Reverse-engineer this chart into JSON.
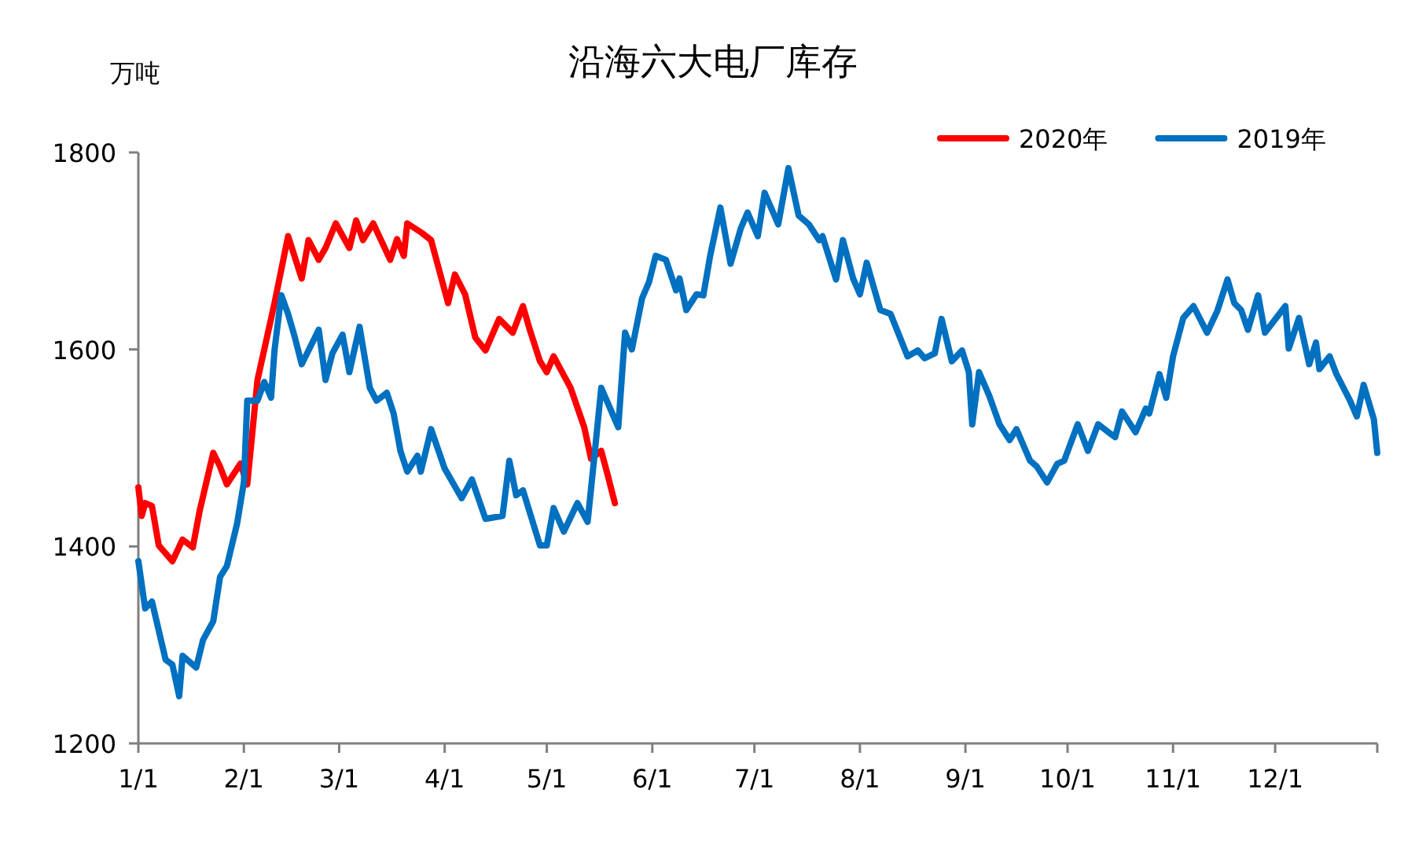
{
  "chart_data": {
    "type": "line",
    "title": "沿海六大电厂库存",
    "ylabel": "万吨",
    "legend": "top right",
    "line_style": "solid",
    "xlim": [
      "--01-01",
      "--12-31"
    ],
    "xticks": [
      {
        "value": "--01-01",
        "label": "1/1"
      },
      {
        "value": "--02-01",
        "label": "2/1"
      },
      {
        "value": "--03-01",
        "label": "3/1"
      },
      {
        "value": "--04-01",
        "label": "4/1"
      },
      {
        "value": "--05-01",
        "label": "5/1"
      },
      {
        "value": "--06-01",
        "label": "6/1"
      },
      {
        "value": "--07-01",
        "label": "7/1"
      },
      {
        "value": "--08-01",
        "label": "8/1"
      },
      {
        "value": "--09-01",
        "label": "9/1"
      },
      {
        "value": "--10-01",
        "label": "10/1"
      },
      {
        "value": "--11-01",
        "label": "11/1"
      },
      {
        "value": "--12-01",
        "label": "12/1"
      },
      {
        "value": "--12-31",
        "label": null
      }
    ],
    "ylim": [
      1200,
      1800
    ],
    "yticks": [
      1200,
      1400,
      1600,
      1800
    ],
    "series": [
      {
        "name": "2020年",
        "color": "#ff0000",
        "x": [
          "--01-01",
          "--01-02",
          "--01-03",
          "--01-05",
          "--01-07",
          "--01-11",
          "--01-14",
          "--01-17",
          "--01-19",
          "--01-23",
          "--01-25",
          "--01-27",
          "--01-31",
          "--02-02",
          "--02-05",
          "--02-07",
          "--02-10",
          "--02-14",
          "--02-18",
          "--02-20",
          "--02-23",
          "--02-25",
          "--02-28",
          "--03-04",
          "--03-06",
          "--03-08",
          "--03-11",
          "--03-16",
          "--03-18",
          "--03-20",
          "--03-21",
          "--03-25",
          "--03-28",
          "--04-02",
          "--04-04",
          "--04-07",
          "--04-10",
          "--04-13",
          "--04-17",
          "--04-21",
          "--04-24",
          "--04-26",
          "--04-29",
          "--05-01",
          "--05-03",
          "--05-08",
          "--05-12",
          "--05-14",
          "--05-17",
          "--05-19",
          "--05-21"
        ],
        "values": [
          1460,
          1431,
          1444,
          1441,
          1401,
          1385,
          1407,
          1399,
          1436,
          1495,
          1481,
          1463,
          1484,
          1463,
          1569,
          1600,
          1647,
          1715,
          1672,
          1711,
          1691,
          1703,
          1728,
          1703,
          1731,
          1711,
          1728,
          1691,
          1712,
          1695,
          1728,
          1719,
          1711,
          1647,
          1676,
          1656,
          1612,
          1599,
          1631,
          1617,
          1644,
          1620,
          1588,
          1577,
          1593,
          1561,
          1521,
          1489,
          1497,
          1471,
          1444
        ]
      },
      {
        "name": "2019年",
        "color": "#0070c0",
        "x": [
          "--01-01",
          "--01-03",
          "--01-05",
          "--01-09",
          "--01-11",
          "--01-13",
          "--01-14",
          "--01-18",
          "--01-20",
          "--01-23",
          "--01-25",
          "--01-27",
          "--01-30",
          "--02-01",
          "--02-02",
          "--02-05",
          "--02-07",
          "--02-09",
          "--02-10",
          "--02-12",
          "--02-14",
          "--02-16",
          "--02-18",
          "--02-23",
          "--02-25",
          "--02-27",
          "--03-02",
          "--03-04",
          "--03-07",
          "--03-10",
          "--03-12",
          "--03-15",
          "--03-17",
          "--03-19",
          "--03-21",
          "--03-24",
          "--03-25",
          "--03-28",
          "--04-01",
          "--04-06",
          "--04-09",
          "--04-13",
          "--04-18",
          "--04-20",
          "--04-22",
          "--04-24",
          "--04-29",
          "--05-01",
          "--05-03",
          "--05-06",
          "--05-10",
          "--05-13",
          "--05-15",
          "--05-17",
          "--05-22",
          "--05-24",
          "--05-26",
          "--05-29",
          "--05-31",
          "--06-02",
          "--06-05",
          "--06-08",
          "--06-09",
          "--06-11",
          "--06-14",
          "--06-16",
          "--06-18",
          "--06-21",
          "--06-24",
          "--06-27",
          "--06-29",
          "--07-02",
          "--07-04",
          "--07-08",
          "--07-11",
          "--07-14",
          "--07-17",
          "--07-20",
          "--07-21",
          "--07-25",
          "--07-27",
          "--07-30",
          "--08-01",
          "--08-03",
          "--08-07",
          "--08-10",
          "--08-15",
          "--08-18",
          "--08-20",
          "--08-23",
          "--08-25",
          "--08-28",
          "--08-31",
          "--09-02",
          "--09-03",
          "--09-05",
          "--09-08",
          "--09-11",
          "--09-14",
          "--09-16",
          "--09-18",
          "--09-20",
          "--09-22",
          "--09-25",
          "--09-28",
          "--09-30",
          "--10-04",
          "--10-07",
          "--10-10",
          "--10-13",
          "--10-15",
          "--10-17",
          "--10-21",
          "--10-24",
          "--10-25",
          "--10-28",
          "--10-30",
          "--11-01",
          "--11-04",
          "--11-07",
          "--11-11",
          "--11-14",
          "--11-17",
          "--11-19",
          "--11-21",
          "--11-23",
          "--11-26",
          "--11-28",
          "--12-04",
          "--12-05",
          "--12-08",
          "--12-11",
          "--12-13",
          "--12-14",
          "--12-17",
          "--12-19",
          "--12-23",
          "--12-25",
          "--12-27",
          "--12-30",
          "--12-31"
        ],
        "values": [
          1385,
          1337,
          1344,
          1285,
          1280,
          1248,
          1289,
          1277,
          1305,
          1324,
          1369,
          1380,
          1423,
          1465,
          1548,
          1548,
          1567,
          1551,
          1599,
          1655,
          1636,
          1612,
          1585,
          1620,
          1569,
          1596,
          1615,
          1577,
          1623,
          1561,
          1548,
          1556,
          1535,
          1497,
          1476,
          1492,
          1476,
          1519,
          1479,
          1449,
          1468,
          1428,
          1431,
          1487,
          1452,
          1457,
          1401,
          1401,
          1439,
          1415,
          1444,
          1425,
          1492,
          1561,
          1521,
          1617,
          1600,
          1652,
          1668,
          1695,
          1691,
          1660,
          1672,
          1640,
          1656,
          1655,
          1695,
          1744,
          1687,
          1723,
          1739,
          1715,
          1759,
          1727,
          1784,
          1736,
          1727,
          1711,
          1715,
          1671,
          1711,
          1672,
          1656,
          1688,
          1640,
          1636,
          1593,
          1599,
          1591,
          1596,
          1631,
          1588,
          1599,
          1577,
          1524,
          1577,
          1553,
          1524,
          1508,
          1519,
          1503,
          1487,
          1481,
          1465,
          1484,
          1487,
          1524,
          1497,
          1524,
          1516,
          1511,
          1537,
          1516,
          1540,
          1535,
          1575,
          1551,
          1593,
          1632,
          1644,
          1617,
          1639,
          1671,
          1647,
          1640,
          1620,
          1655,
          1617,
          1644,
          1601,
          1632,
          1585,
          1607,
          1580,
          1593,
          1575,
          1548,
          1532,
          1564,
          1529,
          1495
        ]
      }
    ]
  }
}
